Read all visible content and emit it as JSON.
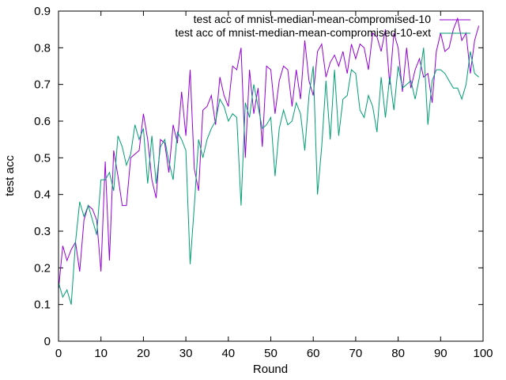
{
  "chart_data": {
    "type": "line",
    "xlabel": "Round",
    "ylabel": "test acc",
    "xlim": [
      0,
      100
    ],
    "ylim": [
      0,
      0.9
    ],
    "xticks": [
      "0",
      "10",
      "20",
      "30",
      "40",
      "50",
      "60",
      "70",
      "80",
      "90",
      "100"
    ],
    "yticks": [
      "0",
      "0.1",
      "0.2",
      "0.3",
      "0.4",
      "0.5",
      "0.6",
      "0.7",
      "0.8",
      "0.9"
    ],
    "grid": false,
    "legend_position": "top-right",
    "series": [
      {
        "name": "test acc of mnist-median-mean-compromised-10",
        "color": "#9400D3",
        "x": [
          0,
          1,
          2,
          3,
          4,
          5,
          6,
          7,
          8,
          9,
          10,
          11,
          12,
          13,
          14,
          15,
          16,
          17,
          18,
          19,
          20,
          21,
          22,
          23,
          24,
          25,
          26,
          27,
          28,
          29,
          30,
          31,
          32,
          33,
          34,
          35,
          36,
          37,
          38,
          39,
          40,
          41,
          42,
          43,
          44,
          45,
          46,
          47,
          48,
          49,
          50,
          51,
          52,
          53,
          54,
          55,
          56,
          57,
          58,
          59,
          60,
          61,
          62,
          63,
          64,
          65,
          66,
          67,
          68,
          69,
          70,
          71,
          72,
          73,
          74,
          75,
          76,
          77,
          78,
          79,
          80,
          81,
          82,
          83,
          84,
          85,
          86,
          87,
          88,
          89,
          90,
          91,
          92,
          93,
          94,
          95,
          96,
          97,
          98,
          99
        ],
        "y": [
          0.14,
          0.26,
          0.22,
          0.25,
          0.27,
          0.19,
          0.33,
          0.37,
          0.36,
          0.33,
          0.19,
          0.49,
          0.22,
          0.52,
          0.45,
          0.37,
          0.37,
          0.5,
          0.51,
          0.52,
          0.62,
          0.55,
          0.44,
          0.39,
          0.55,
          0.54,
          0.46,
          0.59,
          0.54,
          0.68,
          0.56,
          0.74,
          0.47,
          0.41,
          0.63,
          0.64,
          0.67,
          0.59,
          0.72,
          0.67,
          0.64,
          0.75,
          0.74,
          0.8,
          0.5,
          0.74,
          0.62,
          0.69,
          0.53,
          0.75,
          0.74,
          0.62,
          0.71,
          0.75,
          0.74,
          0.64,
          0.74,
          0.66,
          0.82,
          0.71,
          0.67,
          0.79,
          0.81,
          0.72,
          0.76,
          0.78,
          0.75,
          0.79,
          0.73,
          0.81,
          0.77,
          0.81,
          0.8,
          0.74,
          0.84,
          0.83,
          0.79,
          0.85,
          0.7,
          0.84,
          0.8,
          0.68,
          0.8,
          0.69,
          0.74,
          0.77,
          0.72,
          0.73,
          0.65,
          0.79,
          0.84,
          0.79,
          0.8,
          0.85,
          0.88,
          0.82,
          0.84,
          0.73,
          0.82,
          0.86
        ]
      },
      {
        "name": "test acc of mnist-median-mean-compromised-10-ext",
        "color": "#009E73",
        "x": [
          0,
          1,
          2,
          3,
          4,
          5,
          6,
          7,
          8,
          9,
          10,
          11,
          12,
          13,
          14,
          15,
          16,
          17,
          18,
          19,
          20,
          21,
          22,
          23,
          24,
          25,
          26,
          27,
          28,
          29,
          30,
          31,
          32,
          33,
          34,
          35,
          36,
          37,
          38,
          39,
          40,
          41,
          42,
          43,
          44,
          45,
          46,
          47,
          48,
          49,
          50,
          51,
          52,
          53,
          54,
          55,
          56,
          57,
          58,
          59,
          60,
          61,
          62,
          63,
          64,
          65,
          66,
          67,
          68,
          69,
          70,
          71,
          72,
          73,
          74,
          75,
          76,
          77,
          78,
          79,
          80,
          81,
          82,
          83,
          84,
          85,
          86,
          87,
          88,
          89,
          90,
          91,
          92,
          93,
          94,
          95,
          96,
          97,
          98,
          99
        ],
        "y": [
          0.16,
          0.12,
          0.14,
          0.1,
          0.27,
          0.38,
          0.34,
          0.37,
          0.33,
          0.29,
          0.44,
          0.44,
          0.46,
          0.41,
          0.56,
          0.53,
          0.48,
          0.51,
          0.59,
          0.55,
          0.58,
          0.43,
          0.56,
          0.43,
          0.53,
          0.55,
          0.49,
          0.44,
          0.57,
          0.55,
          0.52,
          0.21,
          0.37,
          0.55,
          0.5,
          0.55,
          0.58,
          0.6,
          0.66,
          0.64,
          0.6,
          0.62,
          0.61,
          0.37,
          0.65,
          0.61,
          0.7,
          0.64,
          0.58,
          0.59,
          0.61,
          0.45,
          0.58,
          0.63,
          0.59,
          0.6,
          0.65,
          0.62,
          0.52,
          0.67,
          0.75,
          0.4,
          0.53,
          0.71,
          0.55,
          0.74,
          0.56,
          0.66,
          0.67,
          0.74,
          0.73,
          0.63,
          0.61,
          0.67,
          0.64,
          0.57,
          0.72,
          0.61,
          0.72,
          0.63,
          0.75,
          0.69,
          0.7,
          0.71,
          0.66,
          0.72,
          0.8,
          0.59,
          0.71,
          0.74,
          0.74,
          0.73,
          0.71,
          0.69,
          0.69,
          0.66,
          0.7,
          0.79,
          0.73,
          0.72
        ]
      }
    ]
  }
}
